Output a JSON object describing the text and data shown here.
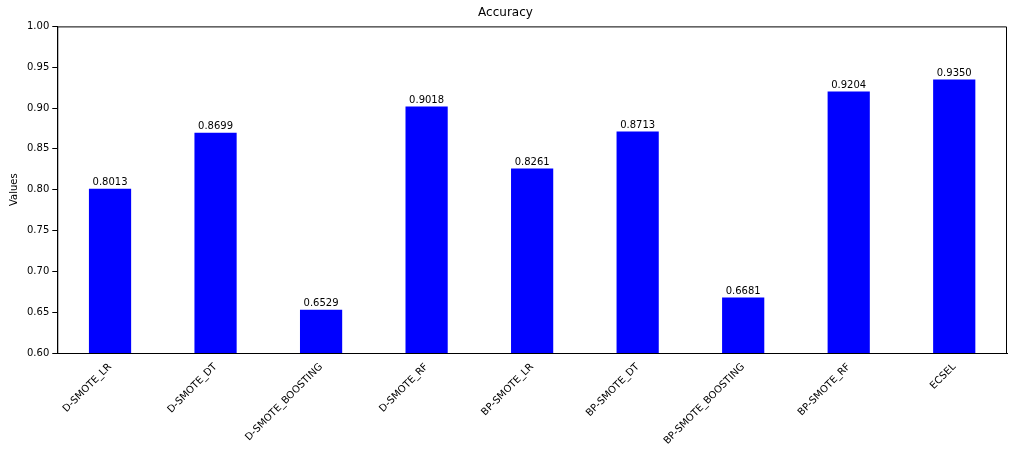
{
  "chart_data": {
    "type": "bar",
    "title": "Accuracy",
    "ylabel": "Values",
    "categories": [
      "D-SMOTE_LR",
      "D-SMOTE_DT",
      "D-SMOTE_BOOSTING",
      "D-SMOTE_RF",
      "BP-SMOTE_LR",
      "BP-SMOTE_DT",
      "BP-SMOTE_BOOSTING",
      "BP-SMOTE_RF",
      "ECSEL"
    ],
    "values": [
      0.8013,
      0.8699,
      0.6529,
      0.9018,
      0.8261,
      0.8713,
      0.6681,
      0.9204,
      0.935
    ],
    "value_labels": [
      "0.8013",
      "0.8699",
      "0.6529",
      "0.9018",
      "0.8261",
      "0.8713",
      "0.6681",
      "0.9204",
      "0.9350"
    ],
    "color": "#0000ff",
    "ylim": [
      0.6,
      1.0
    ],
    "yticks": [
      {
        "value": 0.6,
        "label": "0.60"
      },
      {
        "value": 0.65,
        "label": "0.65"
      },
      {
        "value": 0.7,
        "label": "0.70"
      },
      {
        "value": 0.75,
        "label": "0.75"
      },
      {
        "value": 0.8,
        "label": "0.80"
      },
      {
        "value": 0.85,
        "label": "0.85"
      },
      {
        "value": 0.9,
        "label": "0.90"
      },
      {
        "value": 0.95,
        "label": "0.95"
      },
      {
        "value": 1.0,
        "label": "1.00"
      }
    ],
    "grid": false,
    "legend": false
  }
}
